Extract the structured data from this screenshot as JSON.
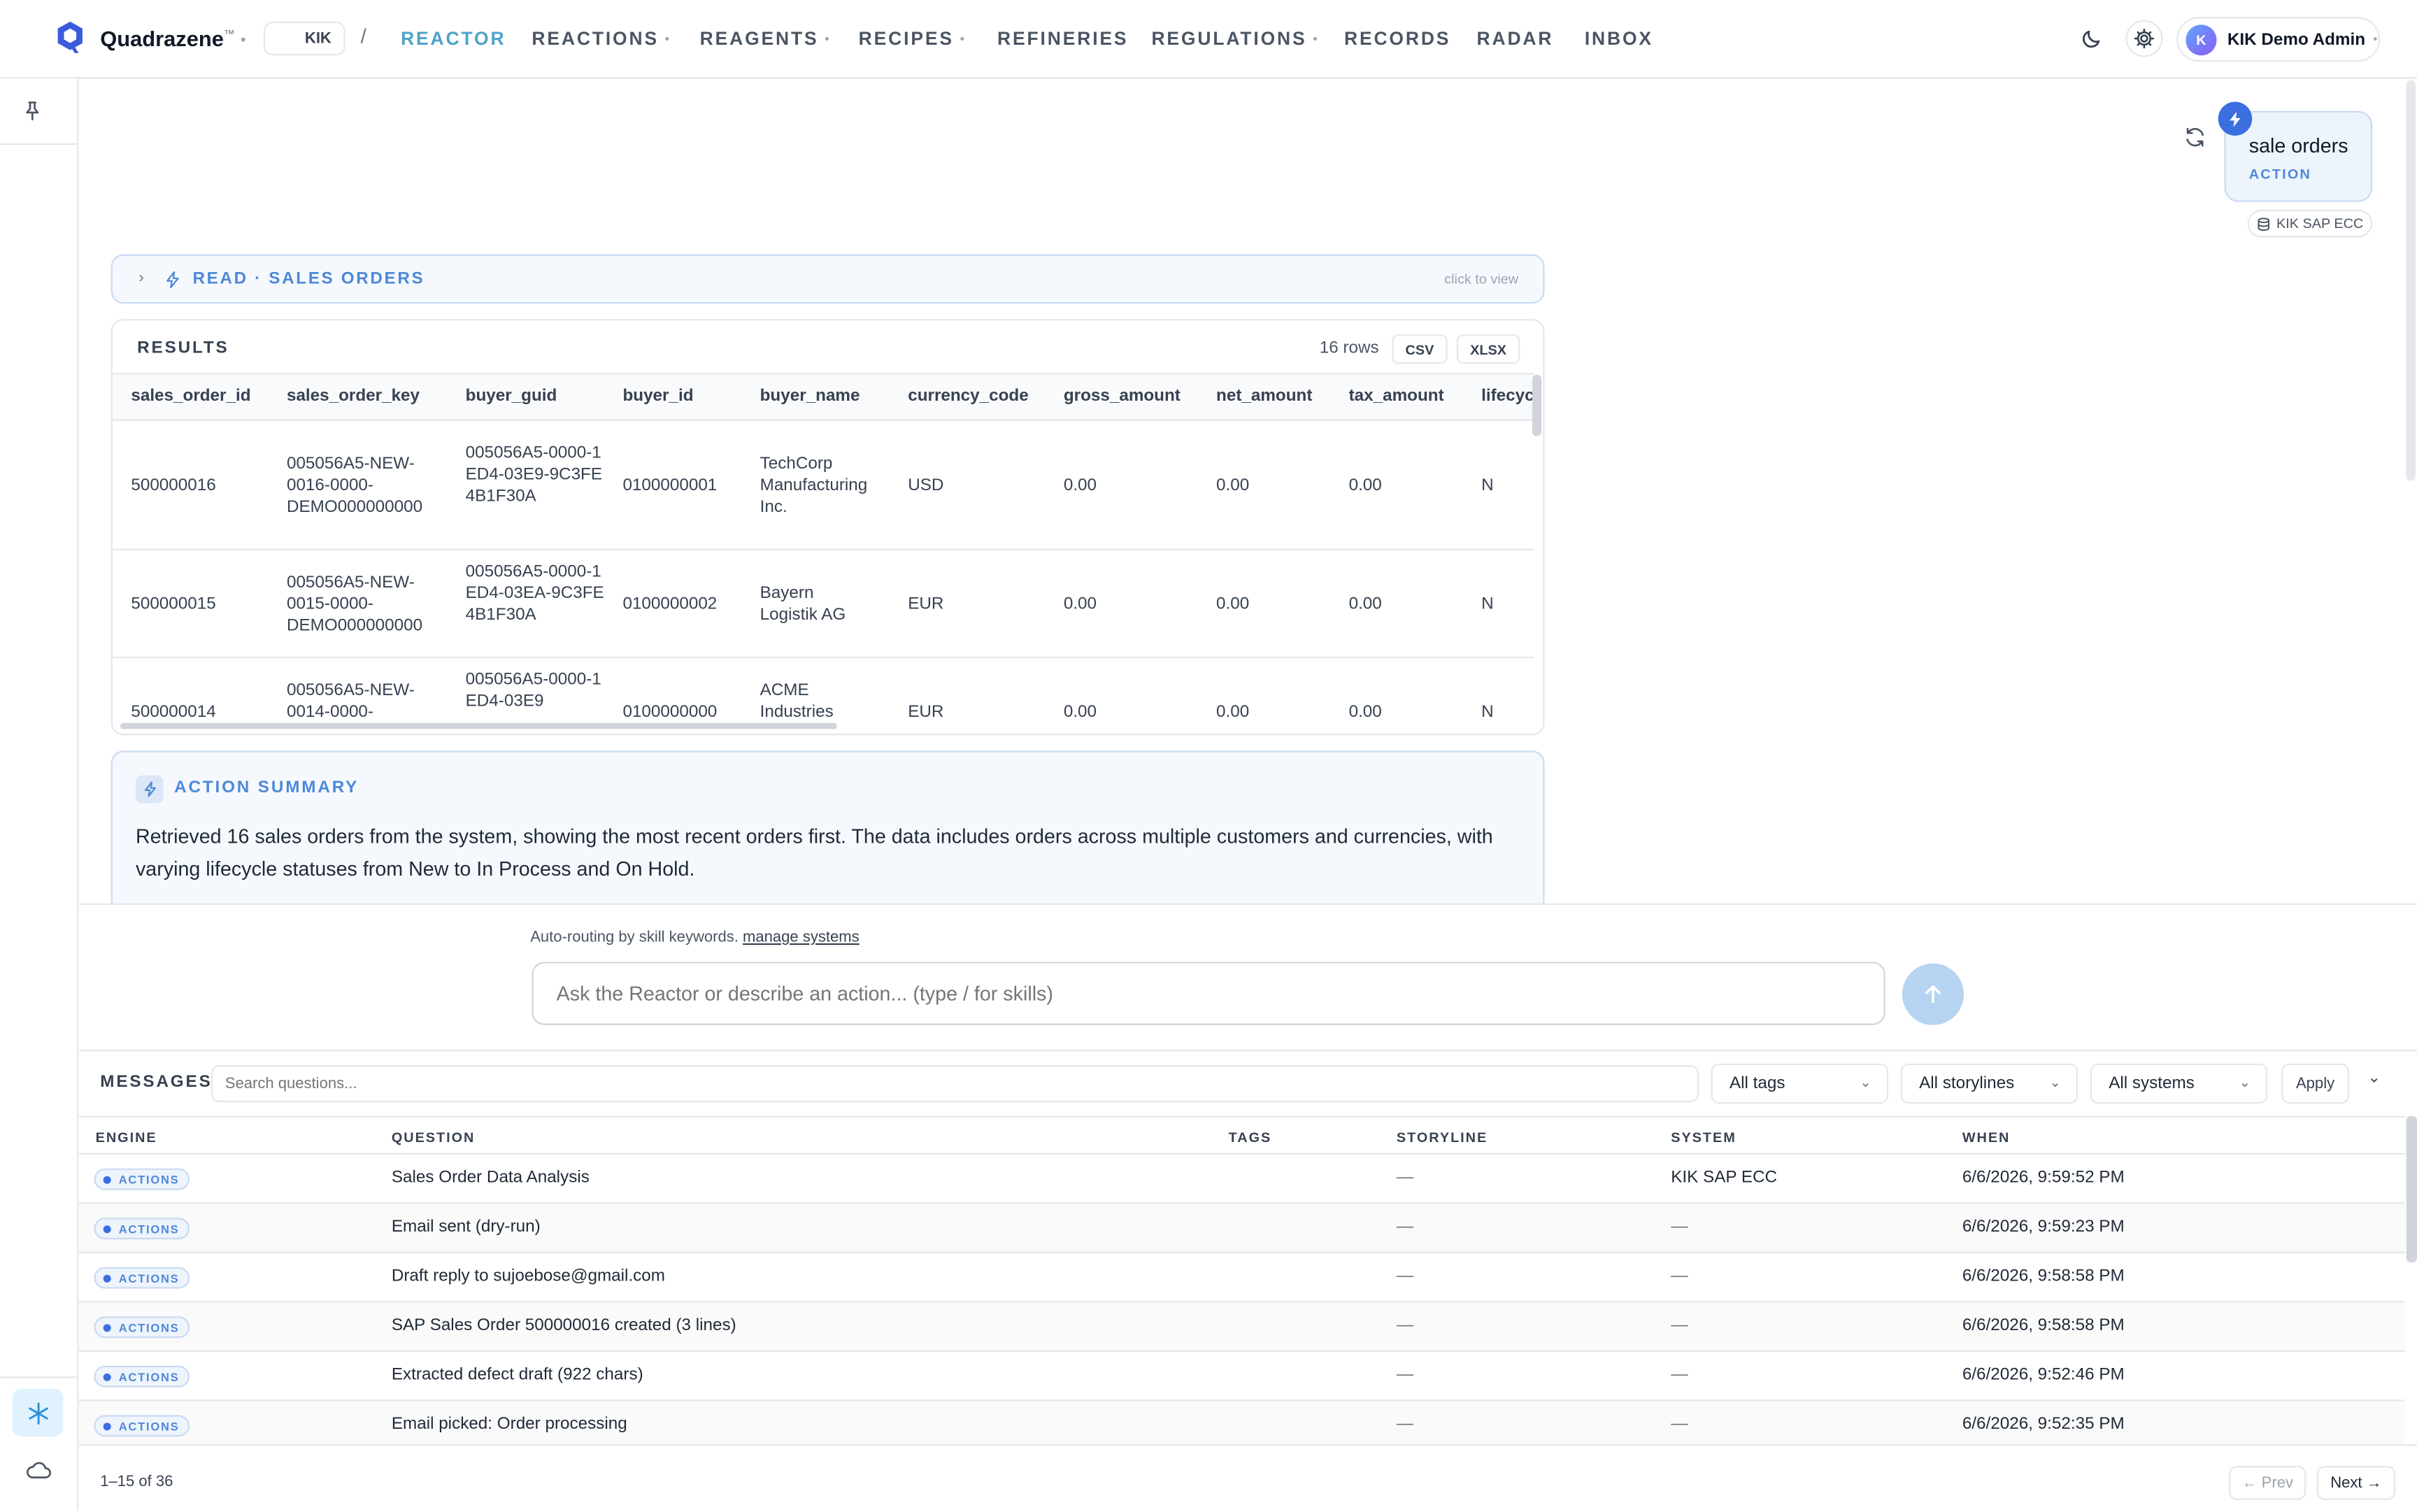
{
  "app": {
    "brand": "Quadrazene",
    "trademark": "™",
    "workspace": "KIK",
    "separator": "/"
  },
  "nav": [
    {
      "label": "REACTOR",
      "active": true,
      "dropdown": false
    },
    {
      "label": "REACTIONS",
      "active": false,
      "dropdown": true
    },
    {
      "label": "REAGENTS",
      "active": false,
      "dropdown": true
    },
    {
      "label": "RECIPES",
      "active": false,
      "dropdown": true
    },
    {
      "label": "REFINERIES",
      "active": false,
      "dropdown": false
    },
    {
      "label": "REGULATIONS",
      "active": false,
      "dropdown": true
    },
    {
      "label": "RECORDS",
      "active": false,
      "dropdown": false
    },
    {
      "label": "RADAR",
      "active": false,
      "dropdown": false
    },
    {
      "label": "INBOX",
      "active": false,
      "dropdown": false
    }
  ],
  "user": {
    "initial": "K",
    "name": "KIK Demo Admin"
  },
  "chat": {
    "request_title": "sale orders",
    "request_kind": "ACTION",
    "system_chip": "KIK SAP ECC",
    "read_label": "READ · SALES ORDERS",
    "read_hint": "click to view"
  },
  "results": {
    "title": "RESULTS",
    "row_count": "16 rows",
    "csv_label": "CSV",
    "xlsx_label": "XLSX",
    "columns": [
      "sales_order_id",
      "sales_order_key",
      "buyer_guid",
      "buyer_id",
      "buyer_name",
      "currency_code",
      "gross_amount",
      "net_amount",
      "tax_amount",
      "lifecyc"
    ],
    "rows": [
      {
        "sales_order_id": "500000016",
        "sales_order_key": "005056A5-NEW-0016-0000-DEMO000000000",
        "buyer_guid": "005056A5-0000-1ED4-03E9-9C3FE4B1F30A",
        "buyer_id": "0100000001",
        "buyer_name": "TechCorp Manufacturing Inc.",
        "currency_code": "USD",
        "gross_amount": "0.00",
        "net_amount": "0.00",
        "tax_amount": "0.00",
        "lifecycle": "N"
      },
      {
        "sales_order_id": "500000015",
        "sales_order_key": "005056A5-NEW-0015-0000-DEMO000000000",
        "buyer_guid": "005056A5-0000-1ED4-03EA-9C3FE4B1F30A",
        "buyer_id": "0100000002",
        "buyer_name": "Bayern Logistik AG",
        "currency_code": "EUR",
        "gross_amount": "0.00",
        "net_amount": "0.00",
        "tax_amount": "0.00",
        "lifecycle": "N"
      },
      {
        "sales_order_id": "500000014",
        "sales_order_key": "005056A5-NEW-0014-0000-",
        "buyer_guid": "005056A5-0000-1ED4-03E9",
        "buyer_id": "0100000000",
        "buyer_name": "ACME Industries",
        "currency_code": "EUR",
        "gross_amount": "0.00",
        "net_amount": "0.00",
        "tax_amount": "0.00",
        "lifecycle": "N"
      }
    ]
  },
  "summary": {
    "title": "ACTION SUMMARY",
    "text": "Retrieved 16 sales orders from the system, showing the most recent orders first. The data includes orders across multiple customers and currencies, with varying lifecycle statuses from New to In Process and On Hold."
  },
  "composer": {
    "hint": "Auto-routing by skill keywords.",
    "hint_link": "manage systems",
    "placeholder": "Ask the Reactor or describe an action... (type / for skills)"
  },
  "messages": {
    "title": "MESSAGES",
    "search_placeholder": "Search questions...",
    "filter_tags": "All tags",
    "filter_storylines": "All storylines",
    "filter_systems": "All systems",
    "apply_label": "Apply",
    "columns": [
      "ENGINE",
      "QUESTION",
      "TAGS",
      "STORYLINE",
      "SYSTEM",
      "WHEN"
    ],
    "rows": [
      {
        "engine": "ACTIONS",
        "question": "Sales Order Data Analysis",
        "tags": "",
        "storyline": "—",
        "system": "KIK SAP ECC",
        "when": "6/6/2026, 9:59:52 PM"
      },
      {
        "engine": "ACTIONS",
        "question": "Email sent (dry-run)",
        "tags": "",
        "storyline": "—",
        "system": "—",
        "when": "6/6/2026, 9:59:23 PM"
      },
      {
        "engine": "ACTIONS",
        "question": "Draft reply to sujoebose@gmail.com",
        "tags": "",
        "storyline": "—",
        "system": "—",
        "when": "6/6/2026, 9:58:58 PM"
      },
      {
        "engine": "ACTIONS",
        "question": "SAP Sales Order 500000016 created (3 lines)",
        "tags": "",
        "storyline": "—",
        "system": "—",
        "when": "6/6/2026, 9:58:58 PM"
      },
      {
        "engine": "ACTIONS",
        "question": "Extracted defect draft (922 chars)",
        "tags": "",
        "storyline": "—",
        "system": "—",
        "when": "6/6/2026, 9:52:46 PM"
      },
      {
        "engine": "ACTIONS",
        "question": "Email picked: Order processing",
        "tags": "",
        "storyline": "—",
        "system": "—",
        "when": "6/6/2026, 9:52:35 PM"
      }
    ],
    "range": "1–15 of 36",
    "prev_label": "← Prev",
    "next_label": "Next →"
  },
  "colors": {
    "accent": "#4e88d8",
    "active_nav": "#4ea3c9",
    "brand_icon": "#3b5bdb",
    "send_button": "#b7d3f2"
  },
  "icons": {
    "theme": "moon-icon",
    "settings": "gear-icon",
    "pin": "pin-icon",
    "refresh": "refresh-icon",
    "bolt": "bolt-icon",
    "database": "database-icon",
    "send": "arrow-up-icon",
    "snowflake": "snowflake-icon",
    "cloud": "cloud-icon"
  }
}
